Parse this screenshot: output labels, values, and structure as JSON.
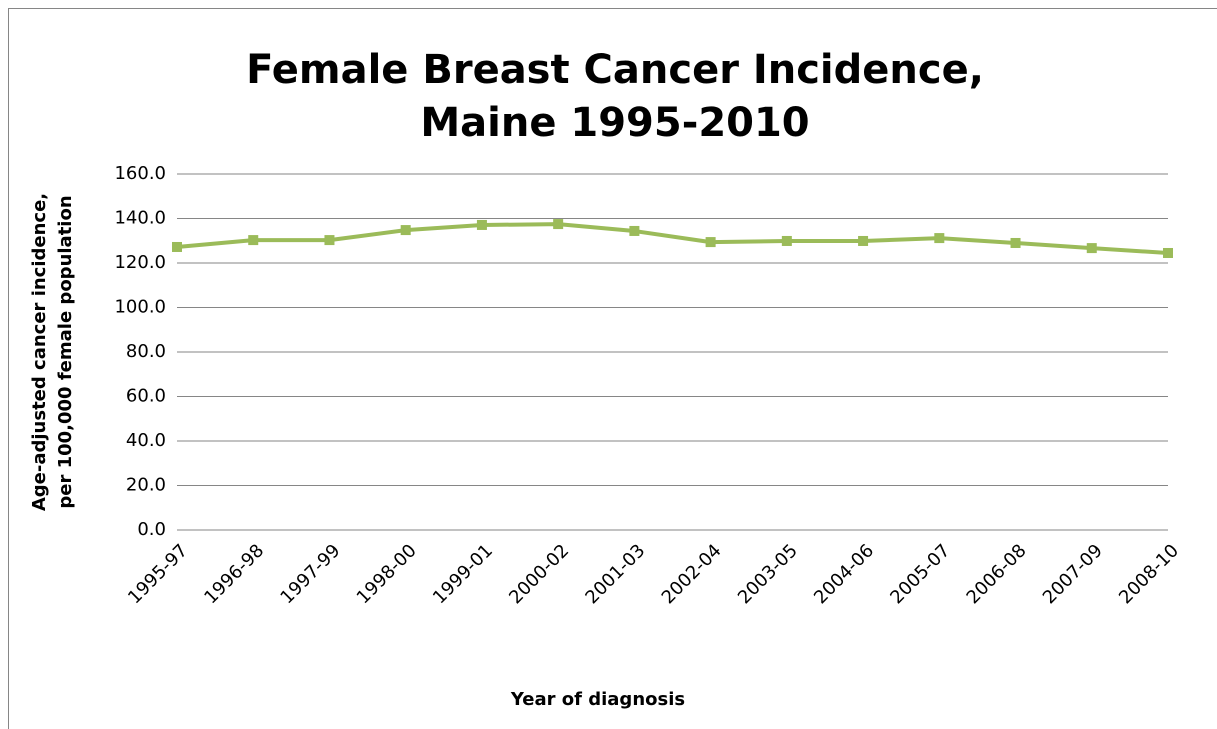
{
  "chart_data": {
    "type": "line",
    "title": [
      "Female Breast Cancer Incidence,",
      "Maine 1995-2010"
    ],
    "y_label": [
      "Age-adjusted cancer incidence,",
      "per 100,000 female population"
    ],
    "x_label": "Year of diagnosis",
    "categories": [
      "1995-97",
      "1996-98",
      "1997-99",
      "1998-00",
      "1999-01",
      "2000-02",
      "2001-03",
      "2002-04",
      "2003-05",
      "2004-06",
      "2005-07",
      "2006-08",
      "2007-09",
      "2008-10"
    ],
    "series": [
      {
        "name": "Incidence",
        "color": "#9bbb59",
        "values": [
          127.2,
          130.3,
          130.3,
          134.8,
          137.1,
          137.5,
          134.4,
          129.4,
          129.9,
          129.9,
          131.2,
          129.0,
          126.7,
          124.5
        ]
      }
    ],
    "ylim": [
      0,
      160
    ],
    "yticks": [
      {
        "value": 0,
        "label": "0.0"
      },
      {
        "value": 20,
        "label": "20.0"
      },
      {
        "value": 40,
        "label": "40.0"
      },
      {
        "value": 60,
        "label": "60.0"
      },
      {
        "value": 80,
        "label": "80.0"
      },
      {
        "value": 100,
        "label": "100.0"
      },
      {
        "value": 120,
        "label": "120.0"
      },
      {
        "value": 140,
        "label": "140.0"
      },
      {
        "value": 160,
        "label": "160.0"
      }
    ],
    "grid": true
  }
}
